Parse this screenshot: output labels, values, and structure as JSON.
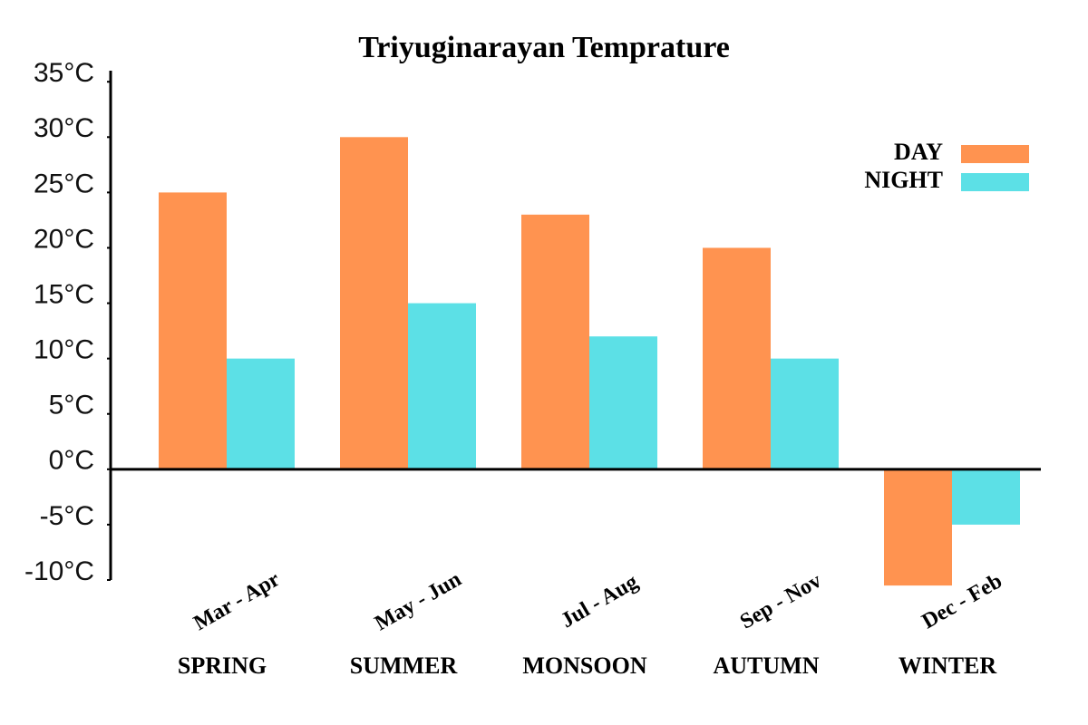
{
  "chart_data": {
    "type": "bar",
    "title": "Triyuginarayan Temprature",
    "categories": [
      "Mar - Apr",
      "May - Jun",
      "Jul - Aug",
      "Sep - Nov",
      "Dec - Feb"
    ],
    "seasons": [
      "SPRING",
      "SUMMER",
      "MONSOON",
      "AUTUMN",
      "WINTER"
    ],
    "series": [
      {
        "name": "DAY",
        "color": "#ff9350",
        "values": [
          25,
          30,
          23,
          20,
          -10.5
        ]
      },
      {
        "name": "NIGHT",
        "color": "#5ce0e6",
        "values": [
          10,
          15,
          12,
          10,
          -5
        ]
      }
    ],
    "ylim": [
      -10,
      36
    ],
    "yticks": [
      {
        "value": 35,
        "label": "35°C"
      },
      {
        "value": 30,
        "label": "30°C"
      },
      {
        "value": 25,
        "label": "25°C"
      },
      {
        "value": 20,
        "label": "20°C"
      },
      {
        "value": 15,
        "label": "15°C"
      },
      {
        "value": 10,
        "label": "10°C"
      },
      {
        "value": 5,
        "label": "5°C"
      },
      {
        "value": 0,
        "label": "0°C"
      },
      {
        "value": -5,
        "label": "-5°C"
      },
      {
        "value": -10,
        "label": "-10°C"
      }
    ],
    "legend": "upper right",
    "grid": false
  }
}
